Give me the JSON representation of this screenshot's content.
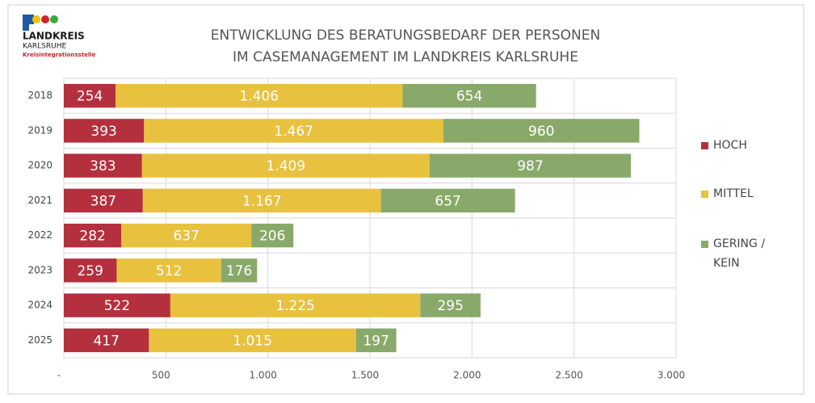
{
  "logo": {
    "name": "LANDKREIS",
    "region": "KARLSRUHE",
    "unit": "Kreisintegrationsstelle"
  },
  "chart_data": {
    "type": "stacked_barh",
    "title": [
      "ENTWICKLUNG DES BERATUNGSBEDARF  DER PERSONEN",
      "IM CASEMANAGEMENT IM LANDKREIS KARLSRUHE"
    ],
    "categories": [
      "2018",
      "2019",
      "2020",
      "2021",
      "2022",
      "2023",
      "2024",
      "2025"
    ],
    "series": [
      {
        "name": "HOCH",
        "color": "#b4303e",
        "values": [
          254,
          393,
          383,
          387,
          282,
          259,
          522,
          417
        ],
        "value_labels": [
          "254",
          "393",
          "383",
          "387",
          "282",
          "259",
          "522",
          "417"
        ]
      },
      {
        "name": "MITTEL",
        "color": "#e8c13f",
        "values": [
          1406,
          1467,
          1409,
          1167,
          637,
          512,
          1225,
          1015
        ],
        "value_labels": [
          "1.406",
          "1.467",
          "1.409",
          "1.167",
          "637",
          "512",
          "1.225",
          "1.015"
        ]
      },
      {
        "name": "GERING / KEIN",
        "color": "#88a96a",
        "values": [
          654,
          960,
          987,
          657,
          206,
          176,
          295,
          197
        ],
        "value_labels": [
          "654",
          "960",
          "987",
          "657",
          "206",
          "176",
          "295",
          "197"
        ]
      }
    ],
    "xlim": [
      0,
      3000
    ],
    "xticks": [
      {
        "value": 0,
        "label": "-"
      },
      500,
      {
        "value": 1000,
        "label": "1.000"
      },
      {
        "value": 1500,
        "label": "1.500"
      },
      {
        "value": 2000,
        "label": "2.000"
      },
      {
        "value": 2500,
        "label": "2.500"
      },
      {
        "value": 3000,
        "label": "3.000"
      }
    ],
    "grid": true,
    "legend": "right"
  }
}
